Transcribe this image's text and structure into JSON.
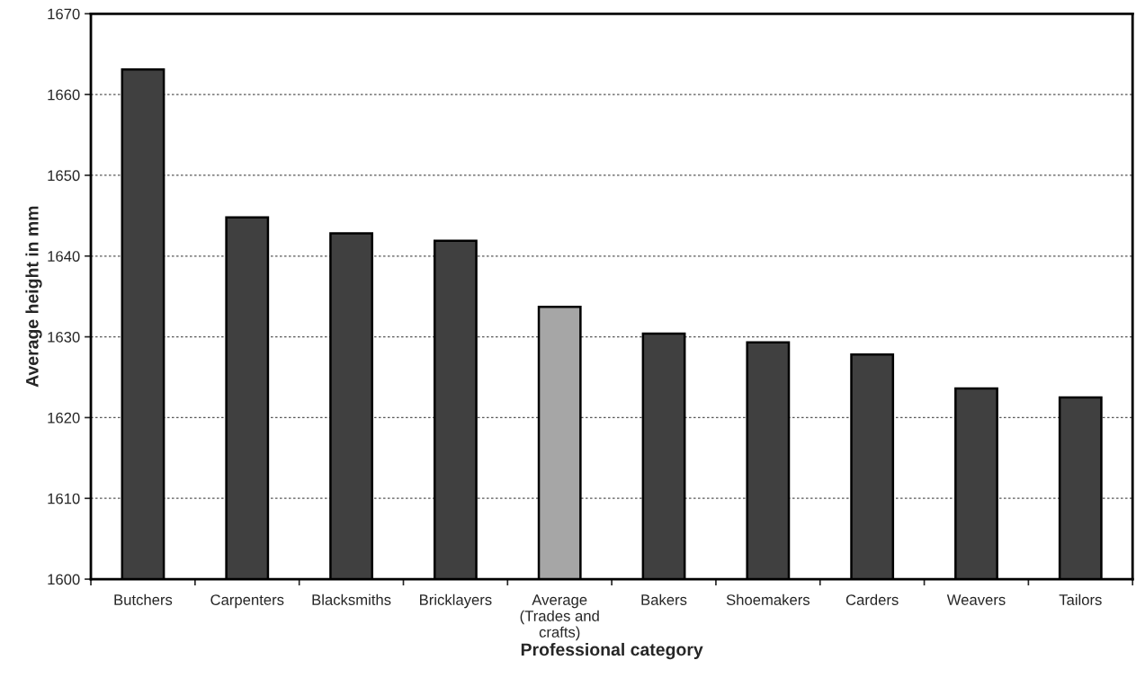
{
  "chart_data": {
    "type": "bar",
    "xlabel": "Professional category",
    "ylabel": "Average height in mm",
    "categories": [
      "Butchers",
      "Carpenters",
      "Blacksmiths",
      "Bricklayers",
      "Average\n(Trades and\ncrafts)",
      "Bakers",
      "Shoemakers",
      "Carders",
      "Weavers",
      "Tailors"
    ],
    "values": [
      1663.1,
      1644.8,
      1642.8,
      1641.9,
      1633.7,
      1630.4,
      1629.3,
      1627.8,
      1623.6,
      1622.5
    ],
    "colors": [
      "#404040",
      "#404040",
      "#404040",
      "#404040",
      "#a6a6a6",
      "#404040",
      "#404040",
      "#404040",
      "#404040",
      "#404040"
    ],
    "ylim": [
      1600,
      1670
    ],
    "yticks": [
      1600,
      1610,
      1620,
      1630,
      1640,
      1650,
      1660,
      1670
    ],
    "grid": "y"
  }
}
